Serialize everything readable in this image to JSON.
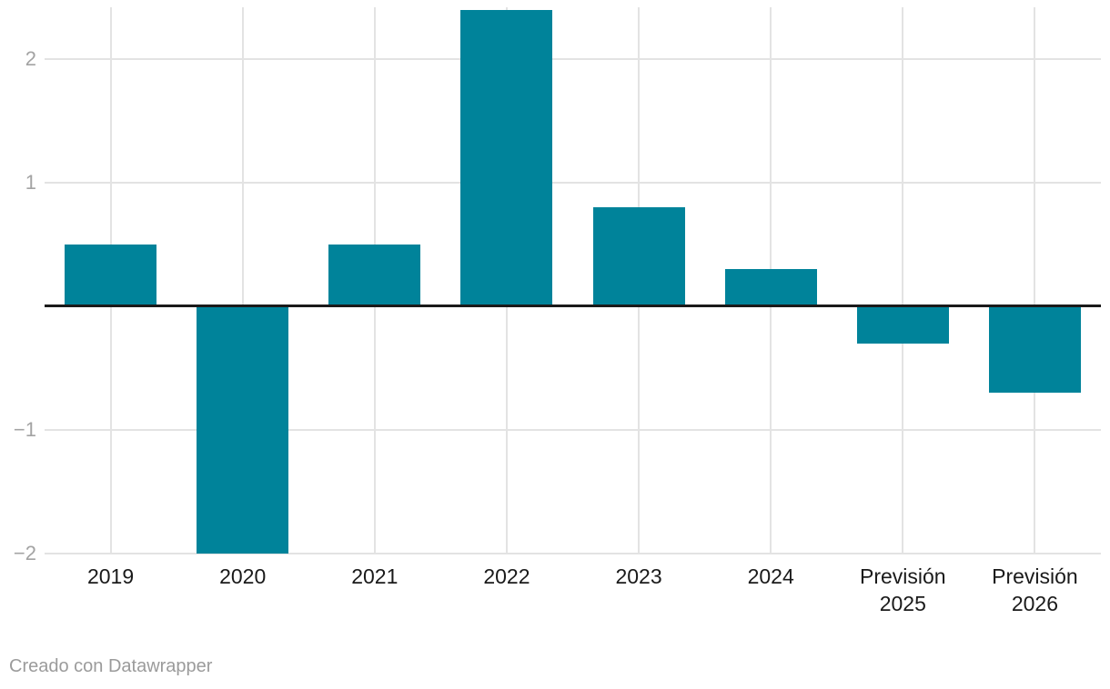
{
  "chart_data": {
    "type": "bar",
    "categories": [
      "2019",
      "2020",
      "2021",
      "2022",
      "2023",
      "2024",
      "Previsión 2025",
      "Previsión 2026"
    ],
    "x_tick_labels": [
      "2019",
      "2020",
      "2021",
      "2022",
      "2023",
      "2024",
      "Previsión\n2025",
      "Previsión\n2026"
    ],
    "values": [
      0.5,
      -2.0,
      0.5,
      2.4,
      0.8,
      0.3,
      -0.3,
      -0.7
    ],
    "title": "",
    "xlabel": "",
    "ylabel": "",
    "ylim": [
      -2.01,
      2.42
    ],
    "yticks": [
      {
        "value": 2,
        "label": "2"
      },
      {
        "value": 1,
        "label": "1"
      },
      {
        "value": -1,
        "label": "−1"
      },
      {
        "value": -2,
        "label": "−2"
      }
    ],
    "grid": true,
    "legend": null,
    "colors": {
      "bar": "#00839a",
      "grid": "#e3e3e3",
      "zero_line": "#1a1a1a",
      "y_tick_text": "#a3a3a3",
      "x_tick_text": "#1a1a1a"
    }
  },
  "footer": {
    "credit": "Creado con Datawrapper",
    "credit_color": "#9b9b9b"
  }
}
